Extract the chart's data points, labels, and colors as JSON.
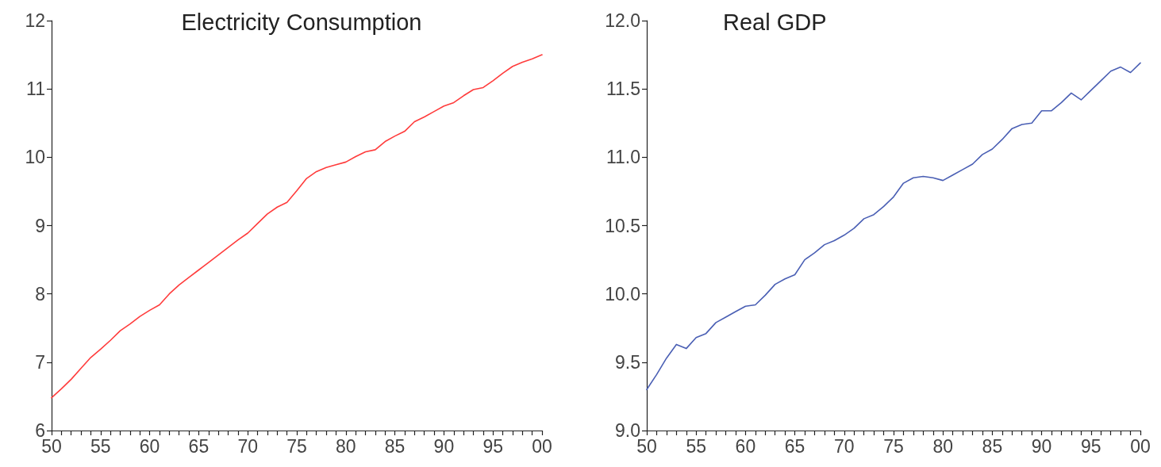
{
  "chart_data": [
    {
      "type": "line",
      "title": "Electricity Consumption",
      "x": [
        1950,
        1951,
        1952,
        1953,
        1954,
        1955,
        1956,
        1957,
        1958,
        1959,
        1960,
        1961,
        1962,
        1963,
        1964,
        1965,
        1966,
        1967,
        1968,
        1969,
        1970,
        1971,
        1972,
        1973,
        1974,
        1975,
        1976,
        1977,
        1978,
        1979,
        1980,
        1981,
        1982,
        1983,
        1984,
        1985,
        1986,
        1987,
        1988,
        1989,
        1990,
        1991,
        1992,
        1993,
        1994,
        1995,
        1996,
        1997,
        1998,
        1999,
        2000
      ],
      "series": [
        {
          "color": "#ff3c3c",
          "values": [
            6.48,
            6.61,
            6.75,
            6.91,
            7.07,
            7.19,
            7.32,
            7.46,
            7.56,
            7.67,
            7.76,
            7.84,
            8.0,
            8.13,
            8.24,
            8.35,
            8.46,
            8.57,
            8.68,
            8.79,
            8.89,
            9.03,
            9.17,
            9.27,
            9.34,
            9.51,
            9.69,
            9.79,
            9.85,
            9.89,
            9.93,
            10.01,
            10.08,
            10.11,
            10.23,
            10.31,
            10.38,
            10.52,
            10.59,
            10.67,
            10.75,
            10.8,
            10.9,
            10.99,
            11.02,
            11.12,
            11.23,
            11.33,
            11.39,
            11.44,
            11.5
          ]
        }
      ],
      "xlim": [
        1950,
        2000
      ],
      "xticks": [
        {
          "value": 1950,
          "label": "50"
        },
        {
          "value": 1951,
          "label": null
        },
        {
          "value": 1952,
          "label": null
        },
        {
          "value": 1953,
          "label": null
        },
        {
          "value": 1954,
          "label": null
        },
        {
          "value": 1955,
          "label": "55"
        },
        {
          "value": 1956,
          "label": null
        },
        {
          "value": 1957,
          "label": null
        },
        {
          "value": 1958,
          "label": null
        },
        {
          "value": 1959,
          "label": null
        },
        {
          "value": 1960,
          "label": "60"
        },
        {
          "value": 1961,
          "label": null
        },
        {
          "value": 1962,
          "label": null
        },
        {
          "value": 1963,
          "label": null
        },
        {
          "value": 1964,
          "label": null
        },
        {
          "value": 1965,
          "label": "65"
        },
        {
          "value": 1966,
          "label": null
        },
        {
          "value": 1967,
          "label": null
        },
        {
          "value": 1968,
          "label": null
        },
        {
          "value": 1969,
          "label": null
        },
        {
          "value": 1970,
          "label": "70"
        },
        {
          "value": 1971,
          "label": null
        },
        {
          "value": 1972,
          "label": null
        },
        {
          "value": 1973,
          "label": null
        },
        {
          "value": 1974,
          "label": null
        },
        {
          "value": 1975,
          "label": "75"
        },
        {
          "value": 1976,
          "label": null
        },
        {
          "value": 1977,
          "label": null
        },
        {
          "value": 1978,
          "label": null
        },
        {
          "value": 1979,
          "label": null
        },
        {
          "value": 1980,
          "label": "80"
        },
        {
          "value": 1981,
          "label": null
        },
        {
          "value": 1982,
          "label": null
        },
        {
          "value": 1983,
          "label": null
        },
        {
          "value": 1984,
          "label": null
        },
        {
          "value": 1985,
          "label": "85"
        },
        {
          "value": 1986,
          "label": null
        },
        {
          "value": 1987,
          "label": null
        },
        {
          "value": 1988,
          "label": null
        },
        {
          "value": 1989,
          "label": null
        },
        {
          "value": 1990,
          "label": "90"
        },
        {
          "value": 1991,
          "label": null
        },
        {
          "value": 1992,
          "label": null
        },
        {
          "value": 1993,
          "label": null
        },
        {
          "value": 1994,
          "label": null
        },
        {
          "value": 1995,
          "label": "95"
        },
        {
          "value": 1996,
          "label": null
        },
        {
          "value": 1997,
          "label": null
        },
        {
          "value": 1998,
          "label": null
        },
        {
          "value": 1999,
          "label": null
        },
        {
          "value": 2000,
          "label": "00"
        }
      ],
      "ylim": [
        6,
        12
      ],
      "yticks": [
        6,
        7,
        8,
        9,
        10,
        11,
        12
      ],
      "grid": false,
      "marker": "none",
      "line_style": "solid"
    },
    {
      "type": "line",
      "title": "Real GDP",
      "x": [
        1950,
        1951,
        1952,
        1953,
        1954,
        1955,
        1956,
        1957,
        1958,
        1959,
        1960,
        1961,
        1962,
        1963,
        1964,
        1965,
        1966,
        1967,
        1968,
        1969,
        1970,
        1971,
        1972,
        1973,
        1974,
        1975,
        1976,
        1977,
        1978,
        1979,
        1980,
        1981,
        1982,
        1983,
        1984,
        1985,
        1986,
        1987,
        1988,
        1989,
        1990,
        1991,
        1992,
        1993,
        1994,
        1995,
        1996,
        1997,
        1998,
        1999,
        2000
      ],
      "series": [
        {
          "color": "#4a5fb4",
          "values": [
            9.3,
            9.41,
            9.53,
            9.63,
            9.6,
            9.68,
            9.71,
            9.79,
            9.83,
            9.87,
            9.91,
            9.92,
            9.99,
            10.07,
            10.11,
            10.14,
            10.25,
            10.3,
            10.36,
            10.39,
            10.43,
            10.48,
            10.55,
            10.58,
            10.64,
            10.71,
            10.81,
            10.85,
            10.86,
            10.85,
            10.83,
            10.87,
            10.91,
            10.95,
            11.02,
            11.06,
            11.13,
            11.21,
            11.24,
            11.25,
            11.34,
            11.34,
            11.4,
            11.47,
            11.42,
            11.49,
            11.56,
            11.63,
            11.66,
            11.62,
            11.69
          ]
        }
      ],
      "xlim": [
        1950,
        2000
      ],
      "xticks": [
        {
          "value": 1950,
          "label": "50"
        },
        {
          "value": 1951,
          "label": null
        },
        {
          "value": 1952,
          "label": null
        },
        {
          "value": 1953,
          "label": null
        },
        {
          "value": 1954,
          "label": null
        },
        {
          "value": 1955,
          "label": "55"
        },
        {
          "value": 1956,
          "label": null
        },
        {
          "value": 1957,
          "label": null
        },
        {
          "value": 1958,
          "label": null
        },
        {
          "value": 1959,
          "label": null
        },
        {
          "value": 1960,
          "label": "60"
        },
        {
          "value": 1961,
          "label": null
        },
        {
          "value": 1962,
          "label": null
        },
        {
          "value": 1963,
          "label": null
        },
        {
          "value": 1964,
          "label": null
        },
        {
          "value": 1965,
          "label": "65"
        },
        {
          "value": 1966,
          "label": null
        },
        {
          "value": 1967,
          "label": null
        },
        {
          "value": 1968,
          "label": null
        },
        {
          "value": 1969,
          "label": null
        },
        {
          "value": 1970,
          "label": "70"
        },
        {
          "value": 1971,
          "label": null
        },
        {
          "value": 1972,
          "label": null
        },
        {
          "value": 1973,
          "label": null
        },
        {
          "value": 1974,
          "label": null
        },
        {
          "value": 1975,
          "label": "75"
        },
        {
          "value": 1976,
          "label": null
        },
        {
          "value": 1977,
          "label": null
        },
        {
          "value": 1978,
          "label": null
        },
        {
          "value": 1979,
          "label": null
        },
        {
          "value": 1980,
          "label": "80"
        },
        {
          "value": 1981,
          "label": null
        },
        {
          "value": 1982,
          "label": null
        },
        {
          "value": 1983,
          "label": null
        },
        {
          "value": 1984,
          "label": null
        },
        {
          "value": 1985,
          "label": "85"
        },
        {
          "value": 1986,
          "label": null
        },
        {
          "value": 1987,
          "label": null
        },
        {
          "value": 1988,
          "label": null
        },
        {
          "value": 1989,
          "label": null
        },
        {
          "value": 1990,
          "label": "90"
        },
        {
          "value": 1991,
          "label": null
        },
        {
          "value": 1992,
          "label": null
        },
        {
          "value": 1993,
          "label": null
        },
        {
          "value": 1994,
          "label": null
        },
        {
          "value": 1995,
          "label": "95"
        },
        {
          "value": 1996,
          "label": null
        },
        {
          "value": 1997,
          "label": null
        },
        {
          "value": 1998,
          "label": null
        },
        {
          "value": 1999,
          "label": null
        },
        {
          "value": 2000,
          "label": "00"
        }
      ],
      "ylim": [
        9,
        12
      ],
      "yticks": [
        {
          "value": 9,
          "label": "9.0"
        },
        {
          "value": 9.5,
          "label": "9.5"
        },
        {
          "value": 10,
          "label": "10.0"
        },
        {
          "value": 10.5,
          "label": "10.5"
        },
        {
          "value": 11,
          "label": "11.0"
        },
        {
          "value": 11.5,
          "label": "11.5"
        },
        {
          "value": 12,
          "label": "12.0"
        }
      ],
      "grid": false,
      "marker": "none",
      "line_style": "solid"
    }
  ]
}
